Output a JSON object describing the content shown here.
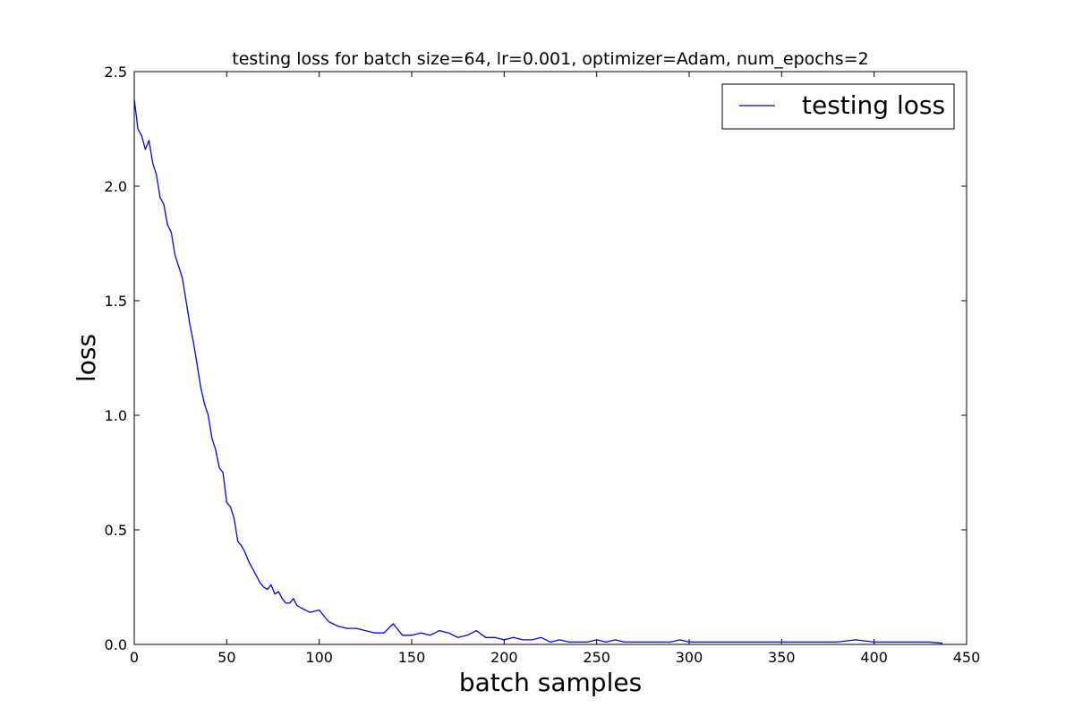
{
  "chart_data": {
    "type": "line",
    "title": "testing loss for batch size=64, lr=0.001, optimizer=Adam, num_epochs=2",
    "xlabel": "batch samples",
    "ylabel": "loss",
    "xlim": [
      0,
      450
    ],
    "ylim": [
      0,
      2.5
    ],
    "xticks": [
      "0",
      "50",
      "100",
      "150",
      "200",
      "250",
      "300",
      "350",
      "400",
      "450"
    ],
    "yticks": [
      "0.0",
      "0.5",
      "1.0",
      "1.5",
      "2.0",
      "2.5"
    ],
    "grid": false,
    "legend_position": "top-right",
    "series": [
      {
        "name": "testing loss",
        "color": "#0000ff",
        "x": [
          0,
          2,
          4,
          6,
          8,
          10,
          12,
          14,
          16,
          18,
          20,
          22,
          24,
          26,
          28,
          30,
          32,
          34,
          36,
          38,
          40,
          42,
          44,
          46,
          48,
          50,
          52,
          54,
          56,
          58,
          60,
          62,
          64,
          66,
          68,
          70,
          72,
          74,
          76,
          78,
          80,
          82,
          84,
          86,
          88,
          90,
          95,
          100,
          105,
          110,
          115,
          120,
          125,
          130,
          135,
          140,
          145,
          150,
          155,
          160,
          165,
          170,
          175,
          180,
          185,
          190,
          195,
          200,
          205,
          210,
          215,
          220,
          225,
          230,
          235,
          240,
          245,
          250,
          255,
          260,
          265,
          270,
          280,
          290,
          295,
          300,
          320,
          340,
          360,
          370,
          380,
          390,
          400,
          410,
          420,
          430,
          437
        ],
        "y": [
          2.38,
          2.25,
          2.22,
          2.16,
          2.2,
          2.1,
          2.05,
          1.95,
          1.92,
          1.83,
          1.8,
          1.7,
          1.65,
          1.6,
          1.5,
          1.4,
          1.32,
          1.22,
          1.12,
          1.05,
          1.0,
          0.9,
          0.85,
          0.77,
          0.75,
          0.62,
          0.6,
          0.55,
          0.45,
          0.43,
          0.4,
          0.36,
          0.33,
          0.3,
          0.27,
          0.25,
          0.24,
          0.26,
          0.22,
          0.23,
          0.2,
          0.18,
          0.18,
          0.2,
          0.17,
          0.16,
          0.14,
          0.15,
          0.1,
          0.08,
          0.07,
          0.07,
          0.06,
          0.05,
          0.05,
          0.09,
          0.04,
          0.04,
          0.05,
          0.04,
          0.06,
          0.05,
          0.03,
          0.04,
          0.06,
          0.03,
          0.03,
          0.02,
          0.03,
          0.02,
          0.02,
          0.03,
          0.01,
          0.02,
          0.01,
          0.01,
          0.01,
          0.02,
          0.01,
          0.02,
          0.01,
          0.01,
          0.01,
          0.01,
          0.02,
          0.01,
          0.01,
          0.01,
          0.01,
          0.01,
          0.01,
          0.02,
          0.01,
          0.01,
          0.01,
          0.01,
          0.005
        ]
      }
    ]
  }
}
